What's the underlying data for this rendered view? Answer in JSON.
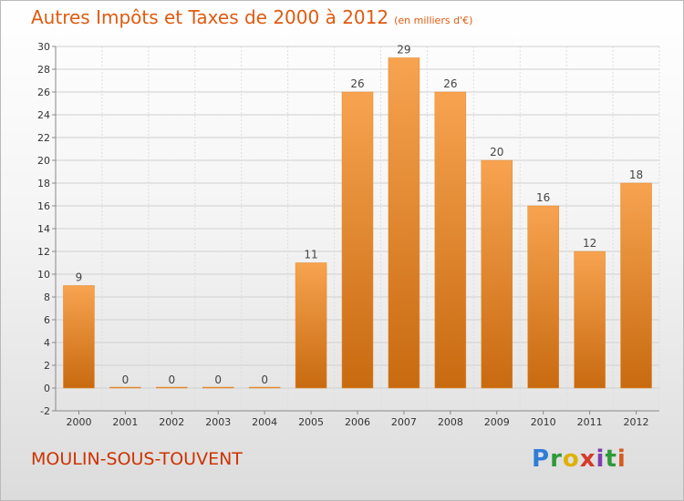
{
  "chart_data": {
    "type": "bar",
    "title": "Autres Impôts et Taxes de 2000 à 2012",
    "subtitle": "(en milliers d'€)",
    "categories": [
      "2000",
      "2001",
      "2002",
      "2003",
      "2004",
      "2005",
      "2006",
      "2007",
      "2008",
      "2009",
      "2010",
      "2011",
      "2012"
    ],
    "values": [
      9,
      0,
      0,
      0,
      0,
      11,
      26,
      29,
      26,
      20,
      16,
      12,
      18
    ],
    "ylim": [
      -2,
      30
    ],
    "yticks": [
      "-2",
      "0",
      "2",
      "4",
      "6",
      "8",
      "10",
      "12",
      "14",
      "16",
      "18",
      "20",
      "22",
      "24",
      "26",
      "28",
      "30"
    ],
    "grid": true,
    "colors": {
      "bar_top": "#f7a350",
      "bar_bottom": "#c86a10",
      "title": "#e05a10",
      "town": "#cc3300"
    }
  },
  "footer": {
    "town": "MOULIN-SOUS-TOUVENT",
    "logo": "Proxiti"
  }
}
